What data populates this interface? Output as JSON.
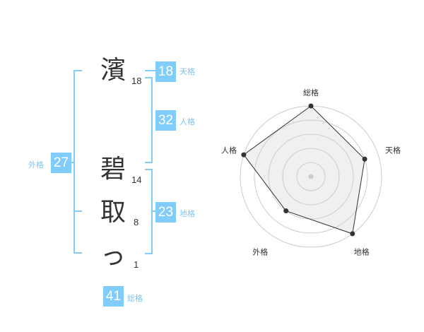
{
  "name": {
    "characters": [
      {
        "char": "濱",
        "strokes": "18"
      },
      {
        "char": "碧",
        "strokes": "14"
      },
      {
        "char": "取",
        "strokes": "8"
      },
      {
        "char": "っ",
        "strokes": "1"
      }
    ]
  },
  "kaku": {
    "tenkaku": {
      "value": "18",
      "label": "天格"
    },
    "jinkaku": {
      "value": "32",
      "label": "人格"
    },
    "chikaku": {
      "value": "23",
      "label": "地格"
    },
    "gaikaku": {
      "value": "27",
      "label": "外格"
    },
    "soukaku": {
      "value": "41",
      "label": "総格"
    }
  },
  "colors": {
    "accent": "#80ccfb",
    "bracket": "#80ccfb",
    "radar_fill": "#f0f0f0",
    "radar_line": "#333333"
  },
  "chart_data": {
    "type": "radar",
    "axes": [
      "総格",
      "天格",
      "地格",
      "外格",
      "人格"
    ],
    "values": [
      5,
      4,
      5,
      3,
      5
    ],
    "range": [
      0,
      5
    ],
    "rings": 5
  }
}
